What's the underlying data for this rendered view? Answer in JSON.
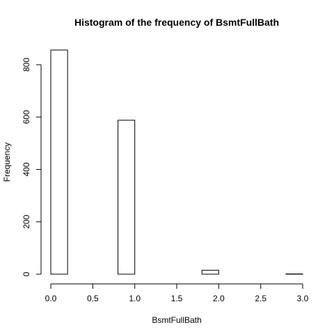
{
  "chart_data": {
    "type": "bar",
    "title": "Histogram of the frequency of BsmtFullBath",
    "xlabel": "BsmtFullBath",
    "ylabel": "Frequency",
    "bin_width": 0.2,
    "bins": [
      {
        "x0": 0.0,
        "x1": 0.2,
        "count": 856
      },
      {
        "x0": 0.2,
        "x1": 0.4,
        "count": 0
      },
      {
        "x0": 0.4,
        "x1": 0.6,
        "count": 0
      },
      {
        "x0": 0.6,
        "x1": 0.8,
        "count": 0
      },
      {
        "x0": 0.8,
        "x1": 1.0,
        "count": 588
      },
      {
        "x0": 1.0,
        "x1": 1.2,
        "count": 0
      },
      {
        "x0": 1.2,
        "x1": 1.4,
        "count": 0
      },
      {
        "x0": 1.4,
        "x1": 1.6,
        "count": 0
      },
      {
        "x0": 1.6,
        "x1": 1.8,
        "count": 0
      },
      {
        "x0": 1.8,
        "x1": 2.0,
        "count": 15
      },
      {
        "x0": 2.0,
        "x1": 2.2,
        "count": 0
      },
      {
        "x0": 2.2,
        "x1": 2.4,
        "count": 0
      },
      {
        "x0": 2.4,
        "x1": 2.6,
        "count": 0
      },
      {
        "x0": 2.6,
        "x1": 2.8,
        "count": 0
      },
      {
        "x0": 2.8,
        "x1": 3.0,
        "count": 1
      }
    ],
    "xlim": [
      0,
      3
    ],
    "ylim": [
      0,
      856
    ],
    "x_ticks": [
      0.0,
      0.5,
      1.0,
      1.5,
      2.0,
      2.5,
      3.0
    ],
    "x_tick_labels": [
      "0.0",
      "0.5",
      "1.0",
      "1.5",
      "2.0",
      "2.5",
      "3.0"
    ],
    "y_ticks": [
      0,
      200,
      400,
      600,
      800
    ],
    "y_tick_labels": [
      "0",
      "200",
      "400",
      "600",
      "800"
    ],
    "grid": false,
    "legend": "none"
  }
}
